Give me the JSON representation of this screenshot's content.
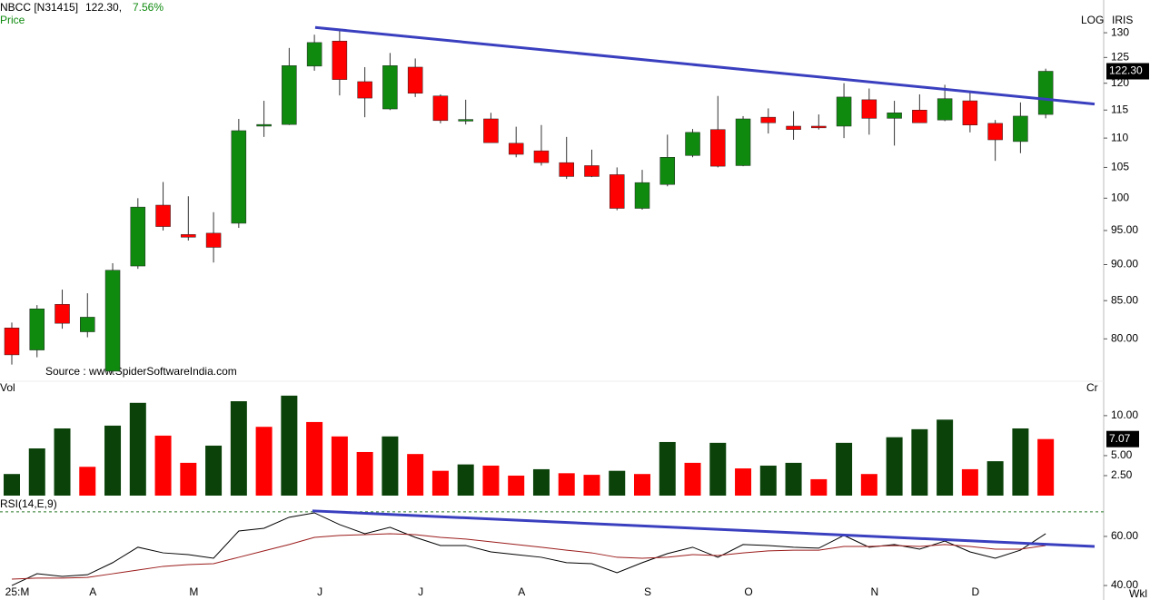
{
  "chart_data": [
    {
      "type": "candlestick",
      "title": "NBCC [N31415]",
      "last_text": "122.30,",
      "change": "7.56%",
      "ylabel": "Price",
      "scale_labels": [
        "LOG",
        "IRIS"
      ],
      "source": "Source : www.SpiderSoftwareIndia.com",
      "period": "Wkl",
      "log_scale": true,
      "up_color": "#0f8a0f",
      "down_color": "#ff0000",
      "categories": [
        "25:M",
        null,
        null,
        "A",
        null,
        null,
        null,
        "M",
        null,
        null,
        null,
        null,
        "J",
        null,
        null,
        null,
        "J",
        null,
        null,
        null,
        "A",
        null,
        null,
        null,
        null,
        "S",
        null,
        null,
        null,
        "O",
        null,
        null,
        null,
        null,
        "N",
        null,
        null,
        null,
        "D",
        null,
        null,
        null
      ],
      "open": [
        81.4,
        78.6,
        84.5,
        80.9,
        76.0,
        89.8,
        98.9,
        94.4,
        94.6,
        96.1,
        112.1,
        112.4,
        123.3,
        128.3,
        120.3,
        115.2,
        123.1,
        117.6,
        113.0,
        113.4,
        109.1,
        107.8,
        105.8,
        105.3,
        103.8,
        98.4,
        102.2,
        107.0,
        111.5,
        105.3,
        113.7,
        112.1,
        112.1,
        112.1,
        116.9,
        113.5,
        115.0,
        113.2,
        116.7,
        112.6,
        109.4,
        114.2
      ],
      "high": [
        82.1,
        84.4,
        86.5,
        86.0,
        90.2,
        100.0,
        102.6,
        100.3,
        97.8,
        113.4,
        116.7,
        126.9,
        129.6,
        130.4,
        123.1,
        125.9,
        124.8,
        117.9,
        116.9,
        114.5,
        112.0,
        112.3,
        110.2,
        108.0,
        105.0,
        104.6,
        110.6,
        111.6,
        117.6,
        113.9,
        115.3,
        114.8,
        114.2,
        120.0,
        119.0,
        116.7,
        117.9,
        119.7,
        118.5,
        113.2,
        116.4,
        122.8
      ],
      "low": [
        76.8,
        77.7,
        81.3,
        80.2,
        75.7,
        89.4,
        95.0,
        93.5,
        90.3,
        95.4,
        110.2,
        112.3,
        122.4,
        117.7,
        113.7,
        115.0,
        117.4,
        112.6,
        112.4,
        109.2,
        106.7,
        105.3,
        103.1,
        103.4,
        98.1,
        98.2,
        101.9,
        106.7,
        105.0,
        105.2,
        110.8,
        109.7,
        111.5,
        110.0,
        110.6,
        108.7,
        112.7,
        113.0,
        111.0,
        106.1,
        107.4,
        113.5
      ],
      "close": [
        78.0,
        83.9,
        82.0,
        82.8,
        89.2,
        98.6,
        95.6,
        94.0,
        92.5,
        111.3,
        112.4,
        123.4,
        128.0,
        120.7,
        117.2,
        123.4,
        118.1,
        113.1,
        113.3,
        109.2,
        107.2,
        105.8,
        103.5,
        103.5,
        98.4,
        102.5,
        106.7,
        111.0,
        105.2,
        113.4,
        112.7,
        111.5,
        111.8,
        117.4,
        113.5,
        114.5,
        112.7,
        117.1,
        112.3,
        109.7,
        113.9,
        122.3
      ],
      "ylim": [
        74.8,
        134.2
      ],
      "yticks": [
        130,
        125,
        120,
        115,
        110,
        105,
        100,
        {
          "value": 95,
          "label": "95.00"
        },
        {
          "value": 90,
          "label": "90.00"
        },
        {
          "value": 85,
          "label": "85.00"
        },
        {
          "value": 80,
          "label": "80.00"
        }
      ],
      "last_price": {
        "value": 122.3,
        "label": "122.30"
      },
      "trendline": {
        "x": [
          12.03,
          42.94
        ],
        "y": [
          131.1,
          116.1
        ],
        "color": "#3a3fbf"
      }
    },
    {
      "type": "bar",
      "title": "Vol",
      "unit": "Cr",
      "values": [
        2.7,
        5.9,
        8.4,
        3.6,
        8.75,
        11.6,
        7.5,
        4.1,
        6.25,
        11.8,
        8.6,
        12.5,
        9.2,
        7.4,
        5.45,
        7.4,
        5.2,
        3.1,
        3.9,
        3.75,
        2.5,
        3.3,
        2.8,
        2.6,
        3.1,
        2.7,
        6.7,
        4.1,
        6.6,
        3.4,
        3.75,
        4.1,
        2.05,
        6.6,
        2.7,
        7.3,
        8.3,
        9.5,
        3.3,
        4.3,
        8.4,
        7.07
      ],
      "colors": [
        "#0a420a",
        "#0a420a",
        "#0a420a",
        "#ff0000",
        "#0a420a",
        "#0a420a",
        "#ff0000",
        "#ff0000",
        "#0a420a",
        "#0a420a",
        "#ff0000",
        "#0a420a",
        "#ff0000",
        "#ff0000",
        "#ff0000",
        "#0a420a",
        "#ff0000",
        "#ff0000",
        "#0a420a",
        "#ff0000",
        "#ff0000",
        "#0a420a",
        "#ff0000",
        "#ff0000",
        "#0a420a",
        "#ff0000",
        "#0a420a",
        "#ff0000",
        "#0a420a",
        "#ff0000",
        "#0a420a",
        "#0a420a",
        "#ff0000",
        "#0a420a",
        "#ff0000",
        "#0a420a",
        "#0a420a",
        "#0a420a",
        "#ff0000",
        "#0a420a",
        "#0a420a",
        "#ff0000"
      ],
      "ylim": [
        0,
        14.3
      ],
      "yticks": [
        {
          "value": 10,
          "label": "10.00"
        },
        {
          "value": 5,
          "label": "5.00"
        },
        {
          "value": 2.5,
          "label": "2.50"
        }
      ]
    },
    {
      "type": "line",
      "title": "RSI(14,E,9)",
      "series": [
        {
          "color": "#000000",
          "values": [
            40.0,
            44.8,
            43.7,
            44.4,
            49.3,
            55.6,
            53.3,
            52.6,
            51.1,
            62.2,
            63.3,
            67.8,
            69.6,
            64.8,
            61.1,
            63.7,
            59.6,
            56.3,
            56.3,
            53.7,
            52.6,
            51.5,
            49.3,
            48.9,
            45.2,
            49.3,
            53.0,
            55.6,
            51.5,
            56.7,
            56.3,
            55.6,
            55.2,
            60.4,
            55.6,
            56.7,
            54.8,
            58.1,
            53.7,
            51.1,
            54.4,
            61.1
          ]
        },
        {
          "color": "#9b1b1b",
          "values": [
            42.6,
            43.0,
            43.0,
            43.3,
            44.8,
            46.3,
            47.8,
            48.5,
            48.9,
            51.5,
            54.1,
            56.7,
            59.6,
            60.4,
            60.7,
            61.1,
            60.7,
            59.6,
            58.9,
            57.8,
            56.7,
            55.6,
            54.4,
            53.3,
            51.5,
            51.1,
            51.5,
            52.6,
            52.2,
            53.3,
            54.1,
            54.4,
            54.4,
            55.9,
            55.9,
            56.3,
            55.9,
            56.7,
            55.9,
            54.8,
            54.8,
            56.3
          ]
        }
      ],
      "ylim": [
        34.1,
        70.7
      ],
      "yticks": [
        {
          "value": 60,
          "label": "60.00"
        },
        {
          "value": 40,
          "label": "40.00"
        }
      ],
      "reference_line": 70,
      "trendline": {
        "x": [
          11.92,
          42.94
        ],
        "y": [
          70.4,
          55.9
        ],
        "color": "#3a3fbf"
      }
    }
  ]
}
